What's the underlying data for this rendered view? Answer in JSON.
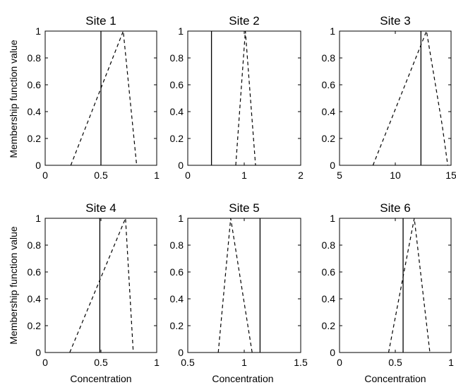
{
  "chart_data": {
    "type": "line",
    "ylabel": "Membership function value",
    "xlabel": "Concentration",
    "panels": [
      {
        "title": "Site 1",
        "xlim": [
          0,
          1
        ],
        "ylim": [
          0,
          1
        ],
        "xticks": [
          0,
          0.5,
          1
        ],
        "xtick_labels": [
          "0",
          "0.5",
          "1"
        ],
        "yticks": [
          0,
          0.2,
          0.4,
          0.6,
          0.8,
          1
        ],
        "ytick_labels": [
          "0",
          "0.2",
          "0.4",
          "0.6",
          "0.8",
          "1"
        ],
        "series": [
          {
            "style": "dashed",
            "x": [
              0.23,
              0.7,
              0.82
            ],
            "y": [
              0,
              1,
              0
            ]
          },
          {
            "style": "solid",
            "x": [
              0.5,
              0.5
            ],
            "y": [
              0,
              1
            ]
          }
        ]
      },
      {
        "title": "Site 2",
        "xlim": [
          0,
          2
        ],
        "ylim": [
          0,
          1
        ],
        "xticks": [
          0,
          1,
          2
        ],
        "xtick_labels": [
          "0",
          "1",
          "2"
        ],
        "yticks": [
          0,
          0.2,
          0.4,
          0.6,
          0.8,
          1
        ],
        "ytick_labels": [
          "0",
          "0.2",
          "0.4",
          "0.6",
          "0.8",
          "1"
        ],
        "series": [
          {
            "style": "dashed",
            "x": [
              0.85,
              1.02,
              1.2
            ],
            "y": [
              0,
              1,
              0
            ]
          },
          {
            "style": "solid",
            "x": [
              0.42,
              0.42
            ],
            "y": [
              0,
              1
            ]
          }
        ]
      },
      {
        "title": "Site 3",
        "xlim": [
          5,
          15
        ],
        "ylim": [
          0,
          1
        ],
        "xticks": [
          5,
          10,
          15
        ],
        "xtick_labels": [
          "5",
          "10",
          "15"
        ],
        "yticks": [
          0,
          0.2,
          0.4,
          0.6,
          0.8,
          1
        ],
        "ytick_labels": [
          "0",
          "0.2",
          "0.4",
          "0.6",
          "0.8",
          "1"
        ],
        "series": [
          {
            "style": "dashed",
            "x": [
              8,
              12.8,
              14.2,
              14.7
            ],
            "y": [
              0,
              1,
              0.3,
              0
            ]
          },
          {
            "style": "solid",
            "x": [
              12.3,
              12.3
            ],
            "y": [
              0,
              1
            ]
          }
        ]
      },
      {
        "title": "Site 4",
        "xlim": [
          0,
          1
        ],
        "ylim": [
          0,
          1
        ],
        "xticks": [
          0,
          0.5,
          1
        ],
        "xtick_labels": [
          "0",
          "0.5",
          "1"
        ],
        "yticks": [
          0,
          0.2,
          0.4,
          0.6,
          0.8,
          1
        ],
        "ytick_labels": [
          "0",
          "0.2",
          "0.4",
          "0.6",
          "0.8",
          "1"
        ],
        "series": [
          {
            "style": "dashed",
            "x": [
              0.22,
              0.72,
              0.79
            ],
            "y": [
              0,
              1,
              0
            ]
          },
          {
            "style": "solid",
            "x": [
              0.49,
              0.49
            ],
            "y": [
              0,
              1
            ]
          }
        ]
      },
      {
        "title": "Site 5",
        "xlim": [
          0.5,
          1.5
        ],
        "ylim": [
          0,
          1
        ],
        "xticks": [
          0.5,
          1,
          1.5
        ],
        "xtick_labels": [
          "0.5",
          "1",
          "1.5"
        ],
        "yticks": [
          0,
          0.2,
          0.4,
          0.6,
          0.8,
          1
        ],
        "ytick_labels": [
          "0",
          "0.2",
          "0.4",
          "0.6",
          "0.8",
          "1"
        ],
        "series": [
          {
            "style": "dashed",
            "x": [
              0.77,
              0.88,
              1.07
            ],
            "y": [
              0,
              1,
              0
            ]
          },
          {
            "style": "solid",
            "x": [
              1.14,
              1.14
            ],
            "y": [
              0,
              1
            ]
          }
        ]
      },
      {
        "title": "Site 6",
        "xlim": [
          0,
          1
        ],
        "ylim": [
          0,
          1
        ],
        "xticks": [
          0,
          0.5,
          1
        ],
        "xtick_labels": [
          "0",
          "0.5",
          "1"
        ],
        "yticks": [
          0,
          0.2,
          0.4,
          0.6,
          0.8,
          1
        ],
        "ytick_labels": [
          "0",
          "0.2",
          "0.4",
          "0.6",
          "0.8",
          "1"
        ],
        "series": [
          {
            "style": "dashed",
            "x": [
              0.44,
              0.67,
              0.81
            ],
            "y": [
              0,
              1,
              0
            ]
          },
          {
            "style": "solid",
            "x": [
              0.57,
              0.57
            ],
            "y": [
              0,
              1
            ]
          }
        ]
      }
    ]
  }
}
